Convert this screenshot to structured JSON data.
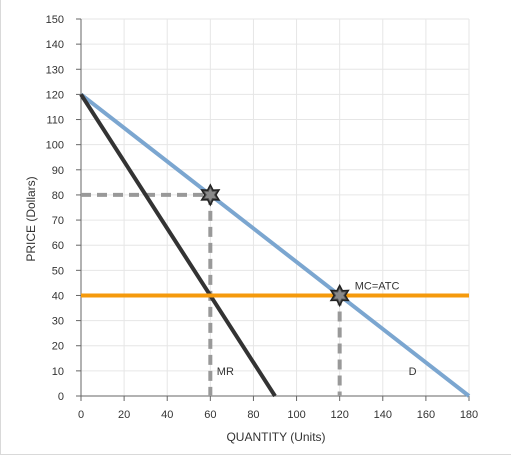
{
  "chart_data": {
    "type": "line",
    "xlabel": "QUANTITY (Units)",
    "ylabel": "PRICE (Dollars)",
    "xlim": [
      0,
      180
    ],
    "ylim": [
      0,
      150
    ],
    "x_ticks": [
      0,
      20,
      40,
      60,
      80,
      100,
      120,
      140,
      160,
      180
    ],
    "y_ticks": [
      0,
      10,
      20,
      30,
      40,
      50,
      60,
      70,
      80,
      90,
      100,
      110,
      120,
      130,
      140,
      150
    ],
    "grid": true,
    "series": [
      {
        "name": "D",
        "color": "#7ba6d0",
        "points": [
          [
            0,
            120
          ],
          [
            180,
            0
          ]
        ]
      },
      {
        "name": "MR",
        "color": "#333333",
        "points": [
          [
            0,
            120
          ],
          [
            90,
            0
          ]
        ]
      },
      {
        "name": "MC=ATC",
        "color": "#f59a0c",
        "points": [
          [
            0,
            40
          ],
          [
            180,
            40
          ]
        ]
      }
    ],
    "guides": [
      {
        "color": "#999999",
        "points": [
          [
            0,
            80
          ],
          [
            60,
            80
          ]
        ]
      },
      {
        "color": "#999999",
        "points": [
          [
            60,
            80
          ],
          [
            60,
            0
          ]
        ]
      },
      {
        "color": "#999999",
        "points": [
          [
            120,
            40
          ],
          [
            120,
            0
          ]
        ]
      }
    ],
    "markers": [
      {
        "x": 60,
        "y": 80
      },
      {
        "x": 120,
        "y": 40
      }
    ],
    "labels": [
      {
        "text": "MR",
        "x": 63,
        "y": 10
      },
      {
        "text": "MC=ATC",
        "x": 127,
        "y": 44
      },
      {
        "text": "D",
        "x": 152,
        "y": 10
      }
    ]
  }
}
